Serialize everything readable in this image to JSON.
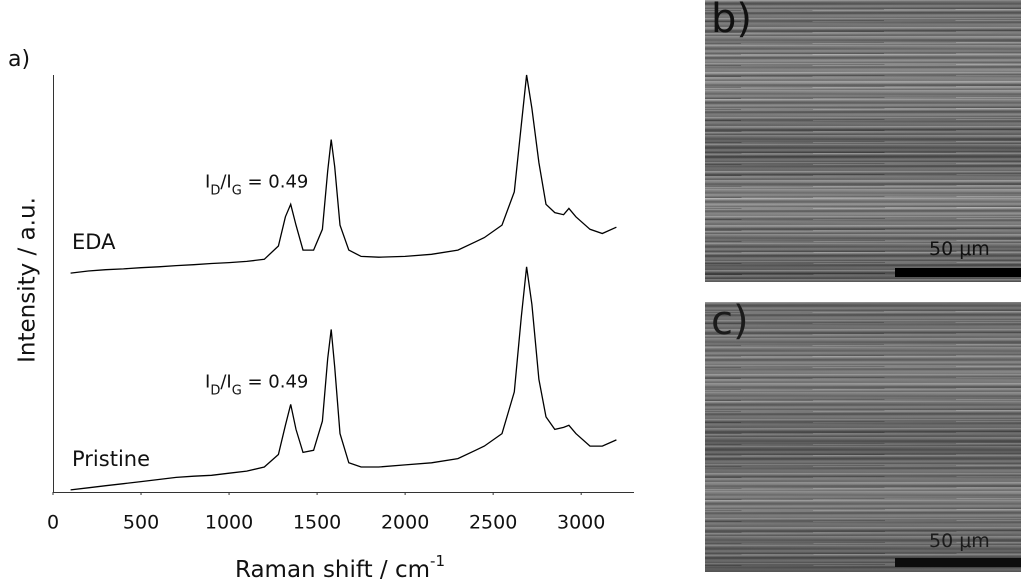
{
  "chart_data": {
    "type": "line",
    "panel_label": "a)",
    "y_label": "Intensity / a.u.",
    "x_label": [
      "Raman shift / cm",
      "-1"
    ],
    "x": [
      100,
      200,
      300,
      400,
      500,
      600,
      700,
      800,
      900,
      1000,
      1100,
      1200,
      1280,
      1320,
      1350,
      1380,
      1420,
      1480,
      1530,
      1560,
      1580,
      1600,
      1630,
      1680,
      1750,
      1850,
      2000,
      2150,
      2300,
      2400,
      2450,
      2550,
      2620,
      2660,
      2690,
      2720,
      2760,
      2800,
      2850,
      2900,
      2930,
      2970,
      3050,
      3120,
      3200
    ],
    "series": [
      {
        "name": "EDA",
        "color": "#000000",
        "values": [
          52.5,
          53,
          53.3,
          53.5,
          53.8,
          54,
          54.3,
          54.5,
          54.8,
          55,
          55.3,
          55.8,
          59,
          66,
          69,
          64,
          58,
          58,
          63,
          77,
          84.5,
          78,
          64,
          58,
          56.5,
          56.3,
          56.5,
          57,
          58,
          60,
          61,
          64,
          72,
          88,
          100,
          92,
          79,
          69,
          67,
          66.5,
          68,
          66,
          63,
          62,
          63.5
        ],
        "annotation": [
          "I",
          "D",
          "/I",
          "G",
          " = 0.49"
        ]
      },
      {
        "name": "Pristine",
        "color": "#000000",
        "values": [
          0.5,
          1,
          1.5,
          2,
          2.5,
          3,
          3.5,
          3.8,
          4,
          4.5,
          5,
          6,
          9,
          16,
          21,
          15,
          9.5,
          10,
          17,
          32,
          39,
          30,
          14,
          7,
          6,
          6,
          6.5,
          7,
          8,
          10,
          11,
          14,
          24,
          42,
          54,
          45,
          27,
          18,
          15,
          15.5,
          16,
          14,
          11,
          11,
          12.5
        ],
        "annotation": [
          "I",
          "D",
          "/I",
          "G",
          " = 0.49"
        ]
      }
    ],
    "xlim": [
      0,
      3300
    ],
    "xticks": [
      0,
      500,
      1000,
      1500,
      2000,
      2500,
      3000
    ],
    "ylim": [
      0,
      100
    ],
    "grid": false
  },
  "panels": [
    {
      "label": "b)",
      "scale_bar": "50 μm"
    },
    {
      "label": "c)",
      "scale_bar": "50 μm"
    }
  ]
}
